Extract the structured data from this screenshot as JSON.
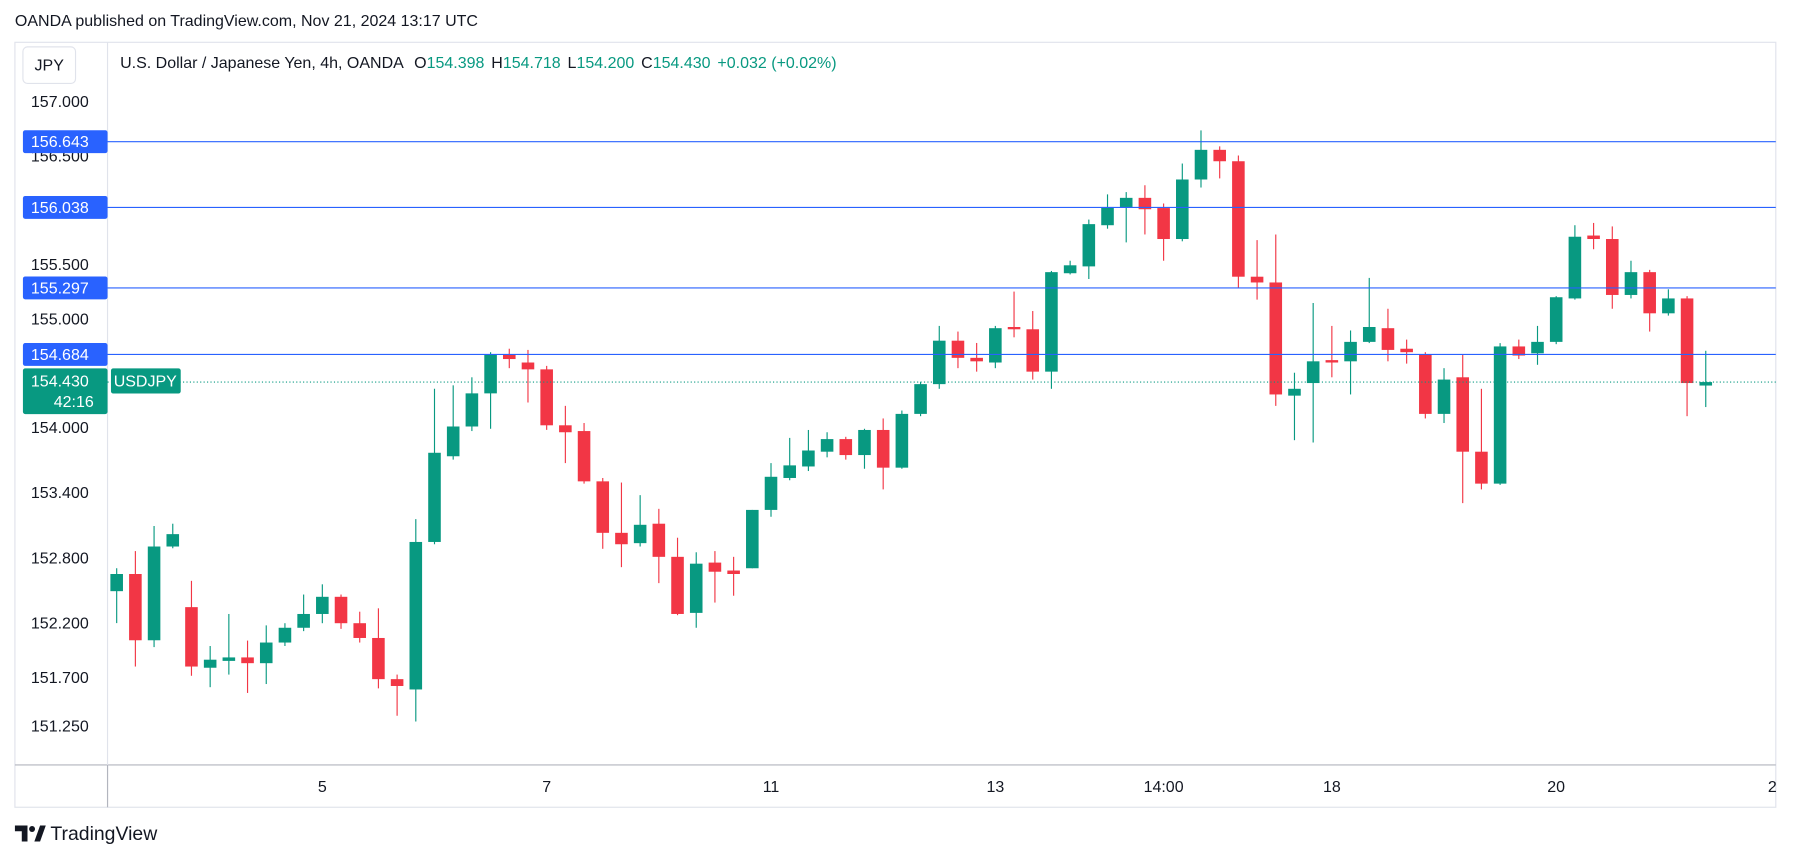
{
  "publisher": "OANDA published on TradingView.com, Nov 21, 2024 13:17 UTC",
  "brand": "TradingView",
  "chart_data": {
    "type": "candlestick",
    "currency": "JPY",
    "title": "U.S. Dollar / Japanese Yen, 4h, OANDA",
    "ohlc": [
      {
        "label": "O",
        "value": "154.398"
      },
      {
        "label": "H",
        "value": "154.718"
      },
      {
        "label": "L",
        "value": "154.200"
      },
      {
        "label": "C",
        "value": "154.430"
      }
    ],
    "change": "+0.032 (+0.02%)",
    "symbol": "USDJPY",
    "countdown": "42:16",
    "up_color": "#089981",
    "down_color": "#f23645",
    "line_color": "#2962ff",
    "categories": [
      null,
      null,
      null,
      null,
      null,
      null,
      null,
      null,
      null,
      null,
      null,
      "5",
      null,
      null,
      null,
      null,
      null,
      null,
      null,
      null,
      null,
      null,
      null,
      "7",
      null,
      null,
      null,
      null,
      null,
      null,
      null,
      null,
      null,
      null,
      null,
      "11",
      null,
      null,
      null,
      null,
      null,
      null,
      null,
      null,
      null,
      null,
      null,
      "13",
      null,
      null,
      null,
      null,
      null,
      null,
      null,
      null,
      "14:00",
      null,
      null,
      null,
      null,
      null,
      null,
      null,
      null,
      "18",
      null,
      null,
      null,
      null,
      null,
      null,
      null,
      null,
      null,
      null,
      null,
      "20",
      null,
      null,
      null,
      null,
      null,
      null,
      null,
      null
    ],
    "x_edge_label": "2",
    "open": [
      152.505,
      152.663,
      152.053,
      152.916,
      152.358,
      151.8,
      151.863,
      151.895,
      151.842,
      152.032,
      152.168,
      152.295,
      152.453,
      152.21,
      152.074,
      151.695,
      151.6,
      152.958,
      153.747,
      154.021,
      154.326,
      154.684,
      154.61,
      154.547,
      154.032,
      153.979,
      153.516,
      153.042,
      152.947,
      153.126,
      152.821,
      152.305,
      152.768,
      152.695,
      152.716,
      153.253,
      153.547,
      153.653,
      153.789,
      153.905,
      153.758,
      153.989,
      153.642,
      154.137,
      154.411,
      154.811,
      154.653,
      154.61,
      154.937,
      154.916,
      154.526,
      155.432,
      155.495,
      155.874,
      156.042,
      156.126,
      156.032,
      155.747,
      156.295,
      156.568,
      156.463,
      155.4,
      155.347,
      154.305,
      154.421,
      154.632,
      154.621,
      154.8,
      154.926,
      154.737,
      154.684,
      154.137,
      154.474,
      153.789,
      153.495,
      154.758,
      154.695,
      154.8,
      155.2,
      155.779,
      155.747,
      155.232,
      155.442,
      155.063,
      155.2,
      154.398
    ],
    "high": [
      152.716,
      152.874,
      153.105,
      153.126,
      152.6,
      152.0,
      152.295,
      152.05,
      152.19,
      152.21,
      152.474,
      152.568,
      152.474,
      152.316,
      152.347,
      151.737,
      153.168,
      154.368,
      154.4,
      154.474,
      154.705,
      154.737,
      154.726,
      154.579,
      154.211,
      154.053,
      153.547,
      153.505,
      153.389,
      153.263,
      152.997,
      152.863,
      152.874,
      152.821,
      153.253,
      153.684,
      153.916,
      153.989,
      153.968,
      153.926,
      154.0,
      154.095,
      154.168,
      154.432,
      154.947,
      154.895,
      154.79,
      154.947,
      155.263,
      155.084,
      155.453,
      155.547,
      155.926,
      156.158,
      156.179,
      156.242,
      156.074,
      156.442,
      156.747,
      156.6,
      156.516,
      155.737,
      155.789,
      154.516,
      155.158,
      154.947,
      154.905,
      155.389,
      155.105,
      154.821,
      154.705,
      154.558,
      154.684,
      154.368,
      154.789,
      154.821,
      154.947,
      155.221,
      155.874,
      155.895,
      155.863,
      155.547,
      155.463,
      155.284,
      155.221,
      154.718
    ],
    "low": [
      152.211,
      151.811,
      151.99,
      152.9,
      151.726,
      151.621,
      151.737,
      151.568,
      151.65,
      152.0,
      152.137,
      152.21,
      152.158,
      152.032,
      151.61,
      151.358,
      151.305,
      152.937,
      153.716,
      153.979,
      154.0,
      154.558,
      154.242,
      153.99,
      153.684,
      153.495,
      152.895,
      152.726,
      152.916,
      152.579,
      152.284,
      152.168,
      152.4,
      152.463,
      152.716,
      153.19,
      153.526,
      153.611,
      153.737,
      153.716,
      153.632,
      153.442,
      153.632,
      154.116,
      154.368,
      154.558,
      154.526,
      154.558,
      154.842,
      154.453,
      154.368,
      155.421,
      155.379,
      155.842,
      155.716,
      155.789,
      155.547,
      155.726,
      156.221,
      156.305,
      155.295,
      155.189,
      154.211,
      153.895,
      153.874,
      154.474,
      154.316,
      154.789,
      154.621,
      154.6,
      154.095,
      154.053,
      153.316,
      153.442,
      153.484,
      154.642,
      154.589,
      154.779,
      155.189,
      155.653,
      155.105,
      155.2,
      154.895,
      155.042,
      154.116,
      154.2
    ],
    "close": [
      152.663,
      152.053,
      152.916,
      153.03,
      151.811,
      151.874,
      151.895,
      151.842,
      152.032,
      152.168,
      152.295,
      152.453,
      152.21,
      152.074,
      151.695,
      151.632,
      152.958,
      153.779,
      154.021,
      154.326,
      154.684,
      154.642,
      154.547,
      154.032,
      153.968,
      153.516,
      153.042,
      152.937,
      153.116,
      152.821,
      152.295,
      152.758,
      152.684,
      152.663,
      153.253,
      153.558,
      153.663,
      153.8,
      153.905,
      153.758,
      153.989,
      153.642,
      154.137,
      154.411,
      154.811,
      154.653,
      154.621,
      154.926,
      154.916,
      154.526,
      155.442,
      155.505,
      155.884,
      156.042,
      156.126,
      156.021,
      155.747,
      156.295,
      156.568,
      156.463,
      155.4,
      155.347,
      154.316,
      154.368,
      154.621,
      154.61,
      154.8,
      154.937,
      154.726,
      154.705,
      154.137,
      154.453,
      153.789,
      153.495,
      154.758,
      154.674,
      154.8,
      155.211,
      155.768,
      155.747,
      155.232,
      155.442,
      155.063,
      155.2,
      154.421,
      154.43
    ],
    "ylim": [
      150.905,
      157.558
    ],
    "yticks": [
      {
        "value": 157,
        "label": "157.000"
      },
      {
        "value": 156.5,
        "label": "156.500"
      },
      {
        "value": 155.5,
        "label": "155.500"
      },
      {
        "value": 155,
        "label": "155.000"
      },
      {
        "value": 154,
        "label": "154.000"
      },
      {
        "value": 153.4,
        "label": "153.400"
      },
      {
        "value": 152.8,
        "label": "152.800"
      },
      {
        "value": 152.2,
        "label": "152.200"
      },
      {
        "value": 151.7,
        "label": "151.700"
      },
      {
        "value": 151.25,
        "label": "151.250"
      }
    ],
    "price_lines": [
      156.643,
      156.038,
      155.297,
      154.684
    ],
    "last_price": {
      "value": 154.43,
      "label": "154.430"
    }
  }
}
